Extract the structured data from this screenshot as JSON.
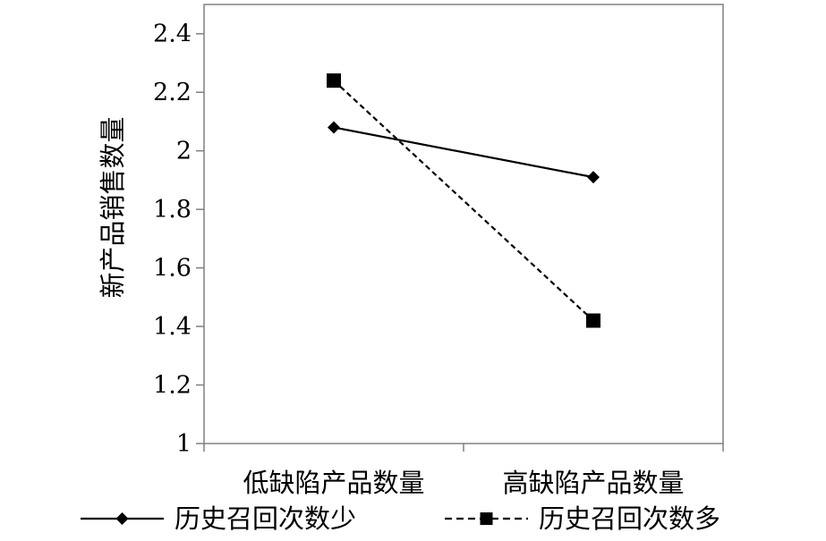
{
  "chart_data": {
    "type": "line",
    "title": "",
    "xlabel": "",
    "ylabel": "新产品销售数量",
    "categories": [
      "低缺陷产品数量",
      "高缺陷产品数量"
    ],
    "ylim": [
      1,
      2.5
    ],
    "yticks": [
      "1",
      "1.2",
      "1.4",
      "1.6",
      "1.8",
      "2",
      "2.2",
      "2.4"
    ],
    "grid": false,
    "legend_position": "bottom",
    "series": [
      {
        "name": "历史召回次数少",
        "values": [
          2.08,
          1.91
        ],
        "line_style": "solid",
        "marker": "diamond",
        "color": "#000000"
      },
      {
        "name": "历史召回次数多",
        "values": [
          2.24,
          1.42
        ],
        "line_style": "dashed",
        "marker": "square",
        "color": "#000000"
      }
    ]
  }
}
